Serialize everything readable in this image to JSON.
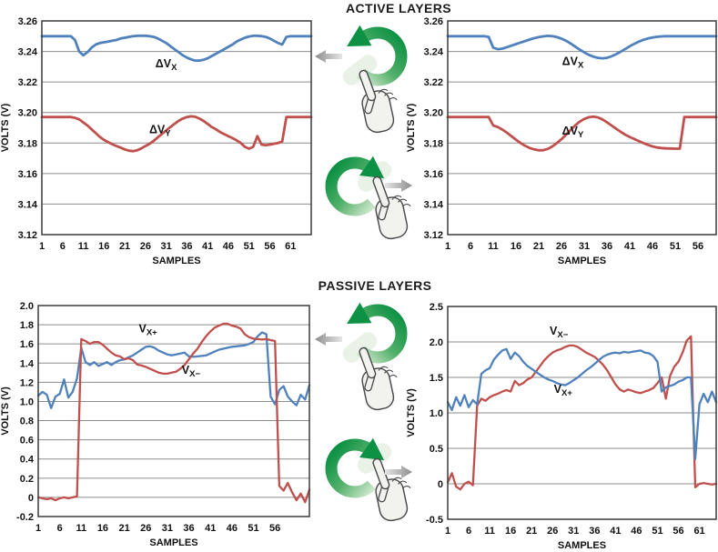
{
  "sections": [
    {
      "id": "active",
      "title": "ACTIVE LAYERS"
    },
    {
      "id": "passive",
      "title": "PASSIVE LAYERS"
    }
  ],
  "gesture_panel": {
    "active": [
      {
        "gesture_icon": "rotate-counterclockwise-icon",
        "touch": "one-finger-hand-icon",
        "result_arrow_icon": "arrow-left-icon"
      },
      {
        "gesture_icon": "rotate-clockwise-icon",
        "touch": "one-finger-hand-icon",
        "result_arrow_icon": "arrow-right-icon"
      }
    ],
    "passive": [
      {
        "gesture_icon": "rotate-counterclockwise-icon",
        "touch": "one-finger-hand-icon",
        "result_arrow_icon": "arrow-left-icon"
      },
      {
        "gesture_icon": "rotate-clockwise-icon",
        "touch": "one-finger-hand-icon",
        "result_arrow_icon": "arrow-right-icon"
      }
    ]
  },
  "colors": {
    "series_blue": "#4F81BD",
    "series_red": "#C0504D",
    "grid": "#8C8C8C",
    "frame": "#3A3A3A",
    "tick_text": "#111111",
    "label_text": "#141414",
    "green_dark": "#0D9144",
    "green_mid": "#52B06A",
    "green_light": "#CFE7CD",
    "arrow_gray_dark": "#8C8C8C",
    "arrow_gray_light": "#E6E6E6"
  },
  "chart_data": [
    {
      "name": "active-left",
      "type": "line",
      "section": "ACTIVE LAYERS",
      "xlabel": "SAMPLES",
      "ylabel": "VOLTS (V)",
      "xlim": [
        1,
        66
      ],
      "ylim": [
        3.12,
        3.26
      ],
      "x_ticks": [
        1,
        6,
        11,
        16,
        21,
        26,
        31,
        36,
        41,
        46,
        51,
        56,
        61
      ],
      "y_ticks": [
        {
          "v": 3.26,
          "t": "3.26"
        },
        {
          "v": 3.24,
          "t": "3.24"
        },
        {
          "v": 3.22,
          "t": "3.22"
        },
        {
          "v": 3.2,
          "t": "3.20"
        },
        {
          "v": 3.18,
          "t": "3.18"
        },
        {
          "v": 3.16,
          "t": "3.16"
        },
        {
          "v": 3.14,
          "t": "3.14"
        },
        {
          "v": 3.12,
          "t": "3.12"
        }
      ],
      "stroke_w": 2.8,
      "series": [
        {
          "name": "ΔVX",
          "label_main": "ΔV",
          "label_sub": "X",
          "color_key": "series_blue",
          "label_at": [
            31,
            3.2295
          ],
          "values": [
            3.25,
            3.25,
            3.25,
            3.25,
            3.25,
            3.25,
            3.25,
            3.25,
            3.2475,
            3.24,
            3.2375,
            3.2395,
            3.2425,
            3.2445,
            3.2455,
            3.246,
            3.2465,
            3.247,
            3.2475,
            3.2485,
            3.249,
            3.2495,
            3.25,
            3.2502,
            3.2503,
            3.2503,
            3.25,
            3.2495,
            3.2485,
            3.247,
            3.2455,
            3.2435,
            3.2415,
            3.2395,
            3.2375,
            3.236,
            3.2348,
            3.234,
            3.234,
            3.2345,
            3.2355,
            3.237,
            3.2385,
            3.24,
            3.2415,
            3.243,
            3.2445,
            3.2465,
            3.2478,
            3.249,
            3.2498,
            3.2502,
            3.2503,
            3.25,
            3.2495,
            3.2485,
            3.247,
            3.2455,
            3.2445,
            3.2495,
            3.25,
            3.25,
            3.25,
            3.25,
            3.25,
            3.25
          ]
        },
        {
          "name": "ΔVY",
          "label_main": "ΔV",
          "label_sub": "Y",
          "color_key": "series_red",
          "label_at": [
            29.5,
            3.1865
          ],
          "values": [
            3.197,
            3.197,
            3.197,
            3.197,
            3.197,
            3.197,
            3.197,
            3.197,
            3.1965,
            3.1955,
            3.1935,
            3.1915,
            3.189,
            3.1865,
            3.184,
            3.182,
            3.1805,
            3.1792,
            3.178,
            3.177,
            3.1758,
            3.175,
            3.1747,
            3.1752,
            3.1765,
            3.178,
            3.1795,
            3.1815,
            3.1838,
            3.186,
            3.1882,
            3.1905,
            3.1925,
            3.1945,
            3.196,
            3.197,
            3.1975,
            3.1972,
            3.196,
            3.1945,
            3.1925,
            3.1905,
            3.189,
            3.1872,
            3.1858,
            3.1845,
            3.1832,
            3.1818,
            3.18,
            3.1775,
            3.1763,
            3.1775,
            3.1845,
            3.179,
            3.1785,
            3.179,
            3.1795,
            3.18,
            3.181,
            3.197,
            3.197,
            3.197,
            3.197,
            3.197,
            3.197,
            3.197
          ]
        }
      ]
    },
    {
      "name": "active-right",
      "type": "line",
      "section": "ACTIVE LAYERS",
      "xlabel": "SAMPLES",
      "ylabel": "VOLTS (V)",
      "xlim": [
        1,
        60
      ],
      "ylim": [
        3.12,
        3.26
      ],
      "x_ticks": [
        1,
        6,
        11,
        16,
        21,
        26,
        31,
        36,
        41,
        46,
        51,
        56
      ],
      "y_ticks": [
        {
          "v": 3.26,
          "t": "3.26"
        },
        {
          "v": 3.24,
          "t": "3.24"
        },
        {
          "v": 3.22,
          "t": "3.22"
        },
        {
          "v": 3.2,
          "t": "3.20"
        },
        {
          "v": 3.18,
          "t": "3.18"
        },
        {
          "v": 3.16,
          "t": "3.16"
        },
        {
          "v": 3.14,
          "t": "3.14"
        },
        {
          "v": 3.12,
          "t": "3.12"
        }
      ],
      "stroke_w": 2.8,
      "series": [
        {
          "name": "ΔVX",
          "label_main": "ΔV",
          "label_sub": "X",
          "color_key": "series_blue",
          "label_at": [
            28.5,
            3.231
          ],
          "values": [
            3.25,
            3.25,
            3.25,
            3.25,
            3.25,
            3.25,
            3.25,
            3.25,
            3.25,
            3.2495,
            3.2425,
            3.2415,
            3.2418,
            3.2428,
            3.2438,
            3.2448,
            3.2458,
            3.2468,
            3.2478,
            3.2487,
            3.2494,
            3.2499,
            3.2502,
            3.25,
            3.2494,
            3.2484,
            3.247,
            3.2452,
            3.2432,
            3.2412,
            3.2394,
            3.2378,
            3.2366,
            3.2358,
            3.2355,
            3.2358,
            3.2368,
            3.2382,
            3.2398,
            3.2416,
            3.2434,
            3.245,
            3.2464,
            3.2476,
            3.2485,
            3.2491,
            3.2496,
            3.2499,
            3.25,
            3.25,
            3.25,
            3.25,
            3.25,
            3.25,
            3.25,
            3.25,
            3.25,
            3.25,
            3.25,
            3.25
          ]
        },
        {
          "name": "ΔVY",
          "label_main": "ΔV",
          "label_sub": "Y",
          "color_key": "series_red",
          "label_at": [
            28.5,
            3.1855
          ],
          "values": [
            3.197,
            3.197,
            3.197,
            3.197,
            3.197,
            3.197,
            3.197,
            3.197,
            3.197,
            3.197,
            3.1915,
            3.1905,
            3.1888,
            3.1868,
            3.1845,
            3.1822,
            3.18,
            3.1782,
            3.1768,
            3.1758,
            3.1752,
            3.1753,
            3.1762,
            3.1778,
            3.18,
            3.1825,
            3.1855,
            3.1885,
            3.1915,
            3.194,
            3.1958,
            3.1969,
            3.1973,
            3.1968,
            3.1955,
            3.1936,
            3.1915,
            3.1894,
            3.1874,
            3.1855,
            3.184,
            3.1826,
            3.1813,
            3.18,
            3.1788,
            3.1778,
            3.1771,
            3.1767,
            3.1765,
            3.1764,
            3.1763,
            3.1763,
            3.197,
            3.197,
            3.197,
            3.197,
            3.197,
            3.197,
            3.197,
            3.197
          ]
        }
      ]
    },
    {
      "name": "passive-left",
      "type": "line",
      "section": "PASSIVE LAYERS",
      "xlabel": "SAMPLES",
      "ylabel": "VOLTS (V)",
      "xlim": [
        1,
        64
      ],
      "ylim": [
        -0.2,
        2.0
      ],
      "x_ticks": [
        1,
        6,
        11,
        16,
        21,
        26,
        31,
        36,
        41,
        46,
        51,
        56
      ],
      "y_ticks": [
        {
          "v": 2.0,
          "t": "2.0"
        },
        {
          "v": 1.8,
          "t": "1.8"
        },
        {
          "v": 1.6,
          "t": "1.6"
        },
        {
          "v": 1.4,
          "t": "1.4"
        },
        {
          "v": 1.2,
          "t": "1.2"
        },
        {
          "v": 1.0,
          "t": "1.0"
        },
        {
          "v": 0.8,
          "t": "0.8"
        },
        {
          "v": 0.6,
          "t": "0.6"
        },
        {
          "v": 0.4,
          "t": "0.4"
        },
        {
          "v": 0.2,
          "t": "0.2"
        },
        {
          "v": 0.0,
          "t": "0"
        },
        {
          "v": -0.2,
          "t": "-0.2"
        }
      ],
      "stroke_w": 2.3,
      "series": [
        {
          "name": "VX+",
          "label_main": "V",
          "label_sub": "X+",
          "color_key": "series_blue",
          "label_at": [
            26.5,
            1.72
          ],
          "values": [
            1.06,
            1.1,
            1.07,
            0.93,
            1.05,
            1.08,
            1.23,
            1.04,
            1.1,
            1.24,
            1.56,
            1.41,
            1.38,
            1.41,
            1.37,
            1.39,
            1.41,
            1.38,
            1.41,
            1.43,
            1.44,
            1.46,
            1.48,
            1.51,
            1.54,
            1.57,
            1.575,
            1.56,
            1.53,
            1.51,
            1.49,
            1.48,
            1.49,
            1.5,
            1.51,
            1.47,
            1.465,
            1.47,
            1.475,
            1.48,
            1.5,
            1.52,
            1.54,
            1.55,
            1.56,
            1.57,
            1.575,
            1.58,
            1.585,
            1.6,
            1.62,
            1.68,
            1.72,
            1.7,
            1.05,
            0.97,
            1.12,
            1.16,
            1.05,
            1.0,
            0.96,
            1.07,
            1.02,
            1.17
          ]
        },
        {
          "name": "VX−",
          "label_main": "V",
          "label_sub": "X−",
          "color_key": "series_red",
          "label_at": [
            36.5,
            1.29
          ],
          "values": [
            0.0,
            -0.01,
            -0.02,
            -0.01,
            -0.03,
            -0.01,
            0.0,
            -0.01,
            0.0,
            0.01,
            1.65,
            1.63,
            1.6,
            1.62,
            1.62,
            1.59,
            1.55,
            1.51,
            1.48,
            1.47,
            1.44,
            1.45,
            1.43,
            1.385,
            1.375,
            1.36,
            1.34,
            1.32,
            1.3,
            1.29,
            1.29,
            1.3,
            1.31,
            1.34,
            1.38,
            1.44,
            1.5,
            1.55,
            1.62,
            1.68,
            1.73,
            1.77,
            1.79,
            1.81,
            1.81,
            1.79,
            1.78,
            1.76,
            1.7,
            1.67,
            1.655,
            1.65,
            1.645,
            1.65,
            1.64,
            1.63,
            0.12,
            0.07,
            0.15,
            0.05,
            -0.03,
            0.04,
            -0.05,
            0.08
          ]
        }
      ]
    },
    {
      "name": "passive-right",
      "type": "line",
      "section": "PASSIVE LAYERS",
      "xlabel": "SAMPLES",
      "ylabel": "VOLTS (V)",
      "xlim": [
        1,
        65
      ],
      "ylim": [
        -0.5,
        2.5
      ],
      "x_ticks": [
        1,
        6,
        11,
        16,
        21,
        26,
        31,
        36,
        41,
        46,
        51,
        56,
        61
      ],
      "y_ticks": [
        {
          "v": 2.5,
          "t": "2.5"
        },
        {
          "v": 2.0,
          "t": "2.0"
        },
        {
          "v": 1.5,
          "t": "1.5"
        },
        {
          "v": 1.0,
          "t": "1.0"
        },
        {
          "v": 0.5,
          "t": "0.5"
        },
        {
          "v": 0.0,
          "t": "0"
        },
        {
          "v": -0.5,
          "t": "-0.5"
        }
      ],
      "stroke_w": 2.3,
      "series": [
        {
          "name": "VX−",
          "label_main": "V",
          "label_sub": "X−",
          "color_key": "series_red",
          "label_at": [
            27.5,
            2.1
          ],
          "values": [
            0.02,
            0.15,
            -0.04,
            -0.08,
            0.0,
            0.03,
            -0.02,
            1.1,
            1.2,
            1.17,
            1.22,
            1.25,
            1.27,
            1.3,
            1.32,
            1.3,
            1.45,
            1.39,
            1.42,
            1.47,
            1.5,
            1.58,
            1.66,
            1.74,
            1.8,
            1.85,
            1.88,
            1.9,
            1.93,
            1.95,
            1.95,
            1.93,
            1.89,
            1.85,
            1.82,
            1.79,
            1.74,
            1.68,
            1.6,
            1.5,
            1.4,
            1.33,
            1.3,
            1.33,
            1.31,
            1.29,
            1.28,
            1.3,
            1.32,
            1.35,
            1.42,
            1.5,
            1.2,
            1.52,
            1.65,
            1.72,
            1.85,
            2.02,
            2.08,
            -0.05,
            0.0,
            0.01,
            0.0,
            -0.01,
            0.0
          ]
        },
        {
          "name": "VX+",
          "label_main": "V",
          "label_sub": "X+",
          "color_key": "series_blue",
          "label_at": [
            28.5,
            1.28
          ],
          "values": [
            1.15,
            1.04,
            1.22,
            1.1,
            1.25,
            1.08,
            1.18,
            1.12,
            1.55,
            1.6,
            1.63,
            1.75,
            1.82,
            1.88,
            1.9,
            1.76,
            1.85,
            1.8,
            1.72,
            1.66,
            1.62,
            1.58,
            1.54,
            1.5,
            1.47,
            1.45,
            1.42,
            1.4,
            1.39,
            1.42,
            1.46,
            1.5,
            1.55,
            1.6,
            1.64,
            1.69,
            1.74,
            1.79,
            1.82,
            1.84,
            1.85,
            1.84,
            1.86,
            1.85,
            1.86,
            1.87,
            1.88,
            1.85,
            1.84,
            1.8,
            1.72,
            1.3,
            1.36,
            1.38,
            1.4,
            1.44,
            1.46,
            1.5,
            1.5,
            0.35,
            1.12,
            1.27,
            1.15,
            1.3,
            1.15
          ]
        }
      ]
    }
  ]
}
